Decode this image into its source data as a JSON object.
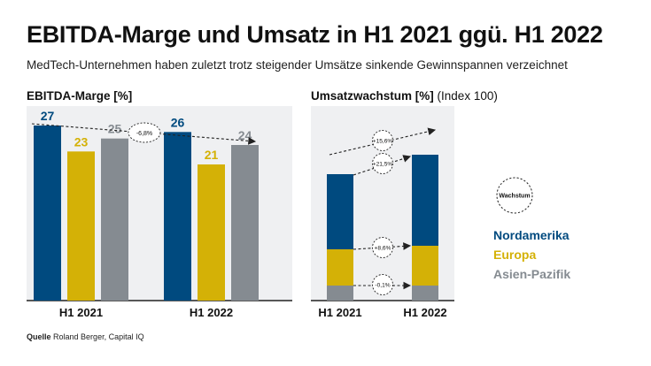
{
  "header": {
    "title": "EBITDA-Marge und Umsatz in H1 2021 ggü. H1 2022",
    "subtitle": "MedTech-Unternehmen haben zuletzt trotz steigender Umsätze sinkende Gewinnspannen verzeichnet"
  },
  "colors": {
    "nordamerika": "#004a7f",
    "europa": "#d4b106",
    "asien": "#858b91"
  },
  "chart_data": [
    {
      "type": "bar",
      "title": "EBITDA-Marge [%]",
      "categories": [
        "H1 2021",
        "H1 2022"
      ],
      "series": [
        {
          "name": "Nordamerika",
          "values": [
            27,
            26
          ]
        },
        {
          "name": "Europa",
          "values": [
            23,
            21
          ]
        },
        {
          "name": "Asien-Pazifik",
          "values": [
            25,
            24
          ]
        }
      ],
      "annotations": [
        {
          "text": "-6,8%"
        }
      ],
      "ylim": [
        0,
        30
      ]
    },
    {
      "type": "bar",
      "stacked": true,
      "title": "Umsatzwachstum [%]",
      "title_suffix": "(Index 100)",
      "categories": [
        "H1 2021",
        "H1 2022"
      ],
      "series": [
        {
          "name": "Asien-Pazifik",
          "values": [
            17,
            17
          ]
        },
        {
          "name": "Europa",
          "values": [
            41,
            45
          ]
        },
        {
          "name": "Nordamerika",
          "values": [
            85,
            103
          ]
        }
      ],
      "annotations": [
        {
          "text": "+15,6%"
        },
        {
          "text": "+21,5%"
        },
        {
          "text": "+8,6%"
        },
        {
          "text": "-0,1%"
        }
      ],
      "legend": {
        "badge": "Wachstum",
        "items": [
          "Nordamerika",
          "Europa",
          "Asien-Pazifik"
        ],
        "position": "right"
      }
    }
  ],
  "source": {
    "label": "Quelle",
    "text": "Roland Berger, Capital IQ"
  }
}
